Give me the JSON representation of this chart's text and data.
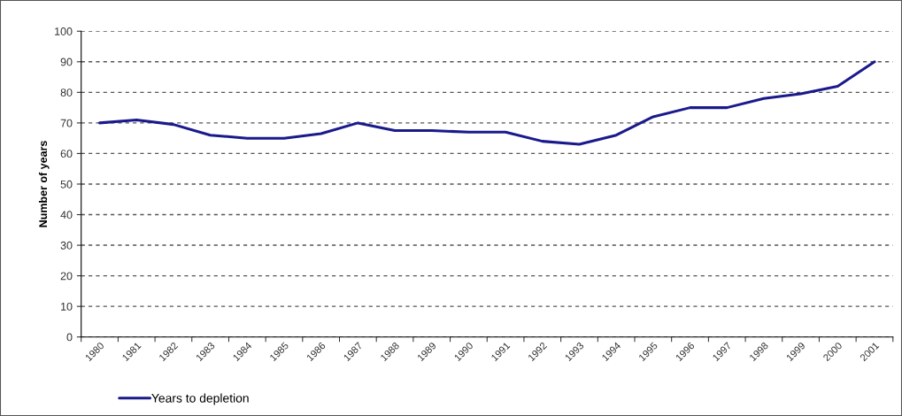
{
  "chart_data": {
    "type": "line",
    "ylabel": "Number of years",
    "categories": [
      "1980",
      "1981",
      "1982",
      "1983",
      "1984",
      "1985",
      "1986",
      "1987",
      "1988",
      "1989",
      "1990",
      "1991",
      "1992",
      "1993",
      "1994",
      "1995",
      "1996",
      "1997",
      "1998",
      "1999",
      "2000",
      "2001"
    ],
    "series": [
      {
        "name": "Years to depletion",
        "color": "#1a1a8c",
        "values": [
          70,
          71,
          69.5,
          66,
          65,
          65,
          66.5,
          70,
          67.5,
          67.5,
          67,
          67,
          64,
          63,
          66,
          72,
          75,
          75,
          78,
          79.5,
          82,
          90
        ]
      }
    ],
    "ylim": [
      0,
      100
    ],
    "yticks": [
      0,
      10,
      20,
      30,
      40,
      50,
      60,
      70,
      80,
      90,
      100
    ],
    "grid": "y",
    "legend": "bottom left",
    "line_style": "solid",
    "marker": "none"
  }
}
